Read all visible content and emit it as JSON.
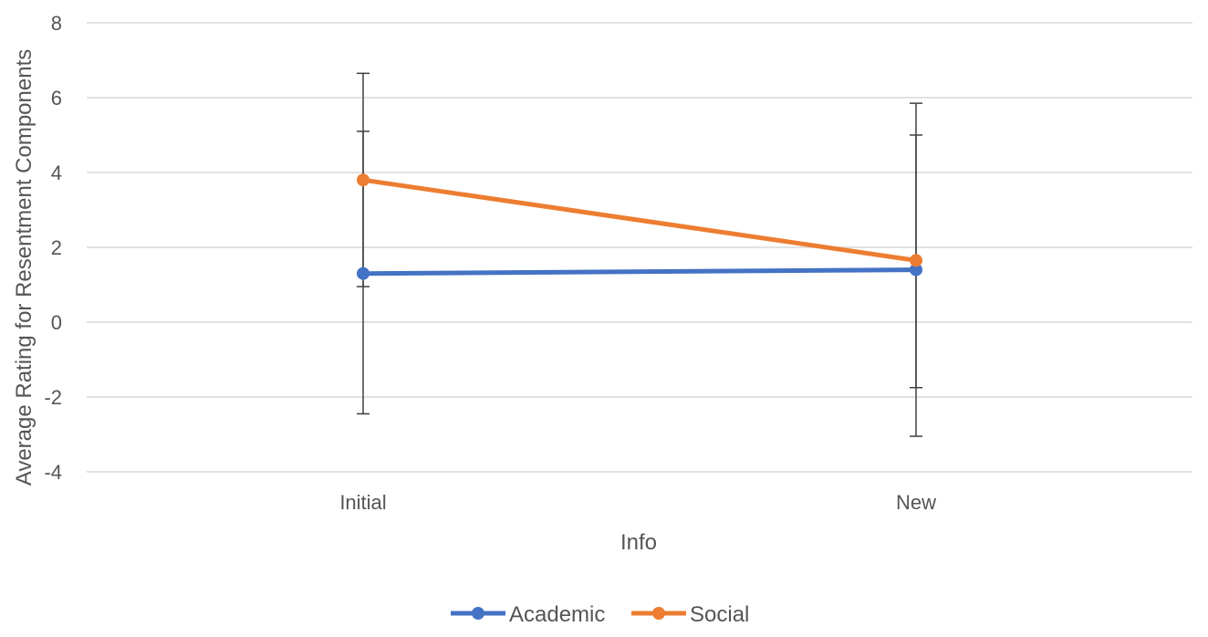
{
  "chart_data": {
    "type": "line",
    "title": "",
    "xlabel": "Info",
    "ylabel": "Average Rating for Resentment Components",
    "categories": [
      "Initial",
      "New"
    ],
    "ylim": [
      -4,
      8
    ],
    "yticks": [
      -4,
      -2,
      0,
      2,
      4,
      6,
      8
    ],
    "ytick_labels": [
      "-4",
      "-2",
      "0",
      "2",
      "4",
      "6",
      "8"
    ],
    "grid": "horizontal",
    "legend": "bottom",
    "series": [
      {
        "name": "Academic",
        "color": "#4472C4",
        "values": [
          1.3,
          1.4
        ],
        "error_low": [
          -2.45,
          -1.75
        ],
        "error_high": [
          5.1,
          5.0
        ]
      },
      {
        "name": "Social",
        "color": "#ED7D31",
        "values": [
          3.8,
          1.65
        ],
        "error_low": [
          0.95,
          -3.05
        ],
        "error_high": [
          6.65,
          5.85
        ]
      }
    ]
  }
}
